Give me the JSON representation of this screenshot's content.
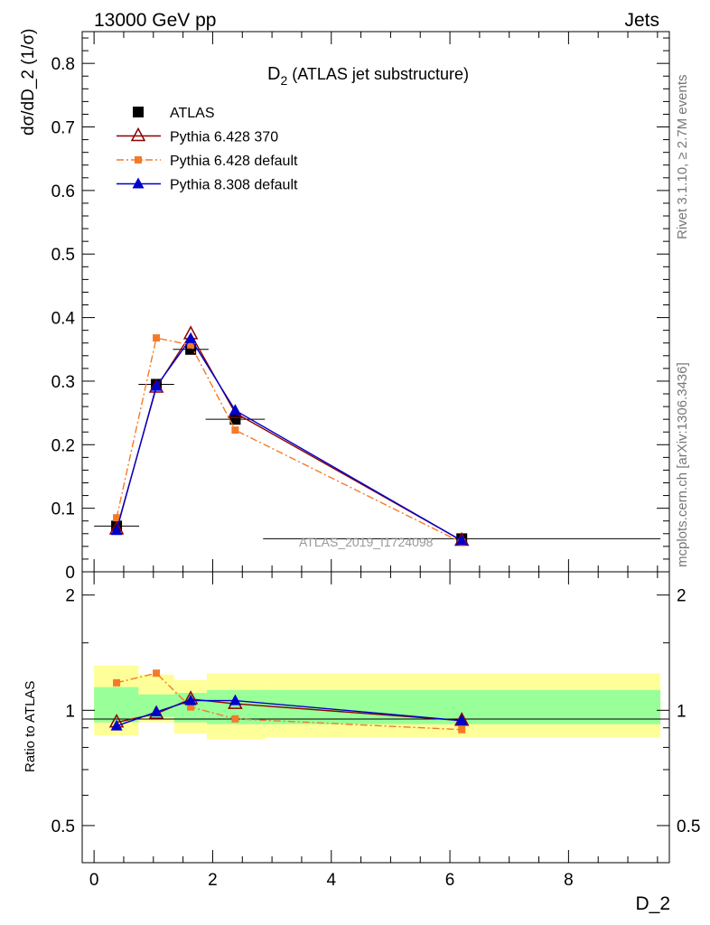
{
  "header": {
    "left": "13000 GeV pp",
    "right": "Jets"
  },
  "side_labels": {
    "top": "Rivet 3.1.10, ≥ 2.7M events",
    "bottom": "mcplots.cern.ch [arXiv:1306.3436]"
  },
  "chart_data": [
    {
      "type": "scatter",
      "title_main": "D",
      "title_sub": "2",
      "title_rest": " (ATLAS jet substructure)",
      "ylabel": "dσ/dD_2 (1/σ)",
      "xlabel": "D_2",
      "watermark": "ATLAS_2019_I1724098",
      "ylim": [
        0,
        0.85
      ],
      "xlim": [
        -0.2,
        9.7
      ],
      "yticks": [
        0,
        0.1,
        0.2,
        0.3,
        0.4,
        0.5,
        0.6,
        0.7,
        0.8
      ],
      "ytick_labels": [
        "0",
        "0.1",
        "0.2",
        "0.3",
        "0.4",
        "0.5",
        "0.6",
        "0.7",
        "0.8"
      ],
      "legend_position": "top-left",
      "series": [
        {
          "name": "ATLAS",
          "color": "#000000",
          "marker": "square",
          "line": "none",
          "x": [
            0.38,
            1.05,
            1.63,
            2.38,
            6.2
          ],
          "y": [
            0.072,
            0.295,
            0.35,
            0.24,
            0.052
          ],
          "xerr": [
            0.38,
            0.3,
            0.3,
            0.5,
            3.35
          ],
          "yerr": [
            0.006,
            0.006,
            0.006,
            0.005,
            0.003
          ]
        },
        {
          "name": "Pythia 6.428 370",
          "color": "#8b0000",
          "marker": "triangle-open",
          "line": "solid",
          "x": [
            0.38,
            1.05,
            1.63,
            2.38,
            6.2
          ],
          "y": [
            0.067,
            0.29,
            0.374,
            0.25,
            0.049
          ]
        },
        {
          "name": "Pythia 6.428 default",
          "color": "#f47a2a",
          "marker": "square-small",
          "line": "dashdot",
          "x": [
            0.38,
            1.05,
            1.63,
            2.38,
            6.2
          ],
          "y": [
            0.085,
            0.368,
            0.357,
            0.223,
            0.046
          ]
        },
        {
          "name": "Pythia 8.308 default",
          "color": "#0000cc",
          "marker": "triangle",
          "line": "solid",
          "x": [
            0.38,
            1.05,
            1.63,
            2.38,
            6.2
          ],
          "y": [
            0.065,
            0.292,
            0.367,
            0.254,
            0.049
          ]
        }
      ]
    },
    {
      "type": "scatter",
      "ylabel": "Ratio to ATLAS",
      "xlabel": "D_2",
      "ylim": [
        0.4,
        2.3
      ],
      "log_y": true,
      "xlim": [
        -0.2,
        9.7
      ],
      "xticks": [
        0,
        2,
        4,
        6,
        8
      ],
      "xtick_labels": [
        "0",
        "2",
        "4",
        "6",
        "8"
      ],
      "yticks": [
        0.5,
        1,
        2
      ],
      "ytick_labels": [
        "0.5",
        "1",
        "2"
      ],
      "bands": [
        {
          "x0": 0.0,
          "x1": 0.75,
          "yellow": [
            0.86,
            1.31
          ],
          "green": [
            0.93,
            1.15
          ]
        },
        {
          "x0": 0.75,
          "x1": 1.35,
          "yellow": [
            0.93,
            1.24
          ],
          "green": [
            0.96,
            1.1
          ]
        },
        {
          "x0": 1.35,
          "x1": 1.9,
          "yellow": [
            0.87,
            1.2
          ],
          "green": [
            0.93,
            1.11
          ]
        },
        {
          "x0": 1.9,
          "x1": 2.9,
          "yellow": [
            0.84,
            1.25
          ],
          "green": [
            0.92,
            1.13
          ]
        },
        {
          "x0": 2.9,
          "x1": 9.55,
          "yellow": [
            0.85,
            1.25
          ],
          "green": [
            0.92,
            1.13
          ]
        }
      ],
      "series": [
        {
          "name": "Pythia 6.428 370",
          "color": "#8b0000",
          "marker": "triangle-open",
          "line": "solid",
          "x": [
            0.38,
            1.05,
            1.63,
            2.38,
            6.2
          ],
          "y": [
            0.93,
            0.98,
            1.07,
            1.04,
            0.94
          ]
        },
        {
          "name": "Pythia 6.428 default",
          "color": "#f47a2a",
          "marker": "square-small",
          "line": "dashdot",
          "x": [
            0.38,
            1.05,
            1.63,
            2.38,
            6.2
          ],
          "y": [
            1.18,
            1.25,
            1.02,
            0.95,
            0.89
          ]
        },
        {
          "name": "Pythia 8.308 default",
          "color": "#0000cc",
          "marker": "triangle",
          "line": "solid",
          "x": [
            0.38,
            1.05,
            1.63,
            2.38,
            6.2
          ],
          "y": [
            0.91,
            0.99,
            1.06,
            1.06,
            0.94
          ]
        }
      ]
    }
  ]
}
